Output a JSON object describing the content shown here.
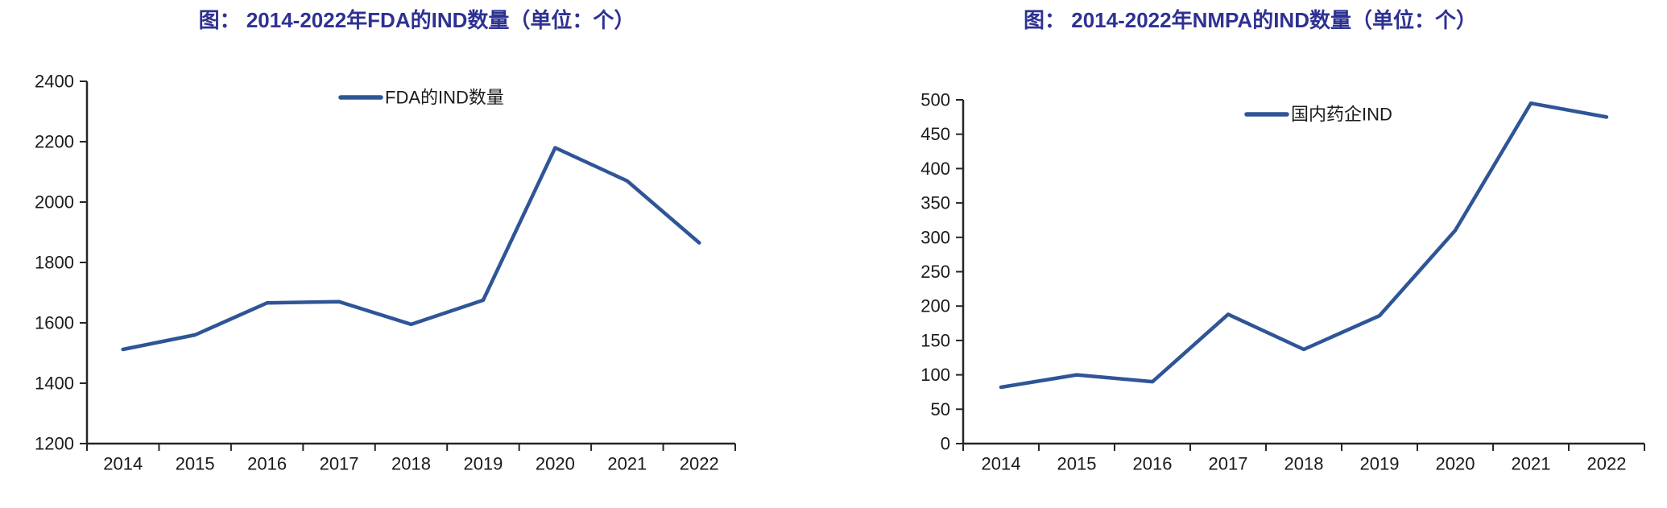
{
  "page": {
    "background": "#ffffff"
  },
  "colors": {
    "line": "#2F5597",
    "title": "#2E3192",
    "axis": "#262626",
    "tick_label": "#1a1a1a",
    "legend_label": "#1a1a1a"
  },
  "chart_data": [
    {
      "type": "line",
      "title": "图： 2014-2022年FDA的IND数量（单位：个）",
      "categories": [
        "2014",
        "2015",
        "2016",
        "2017",
        "2018",
        "2019",
        "2020",
        "2021",
        "2022"
      ],
      "series": [
        {
          "name": "FDA的IND数量",
          "values": [
            1512,
            1560,
            1666,
            1670,
            1595,
            1675,
            2180,
            2070,
            1865
          ]
        }
      ],
      "legend": [
        "FDA的IND数量"
      ],
      "legend_position": "top-center-inside",
      "xlabel": "",
      "ylabel": "",
      "ylim": [
        1200,
        2400
      ],
      "ytick_step": 200,
      "yticks": [
        1200,
        1400,
        1600,
        1800,
        2000,
        2200,
        2400
      ],
      "grid": false
    },
    {
      "type": "line",
      "title": "图： 2014-2022年NMPA的IND数量（单位：个）",
      "categories": [
        "2014",
        "2015",
        "2016",
        "2017",
        "2018",
        "2019",
        "2020",
        "2021",
        "2022"
      ],
      "series": [
        {
          "name": "国内药企IND",
          "values": [
            82,
            100,
            90,
            188,
            137,
            186,
            310,
            495,
            475
          ]
        }
      ],
      "legend": [
        "国内药企IND"
      ],
      "legend_position": "top-center-inside",
      "xlabel": "",
      "ylabel": "",
      "ylim": [
        0,
        500
      ],
      "ytick_step": 50,
      "yticks": [
        0,
        50,
        100,
        150,
        200,
        250,
        300,
        350,
        400,
        450,
        500
      ],
      "grid": false
    }
  ]
}
